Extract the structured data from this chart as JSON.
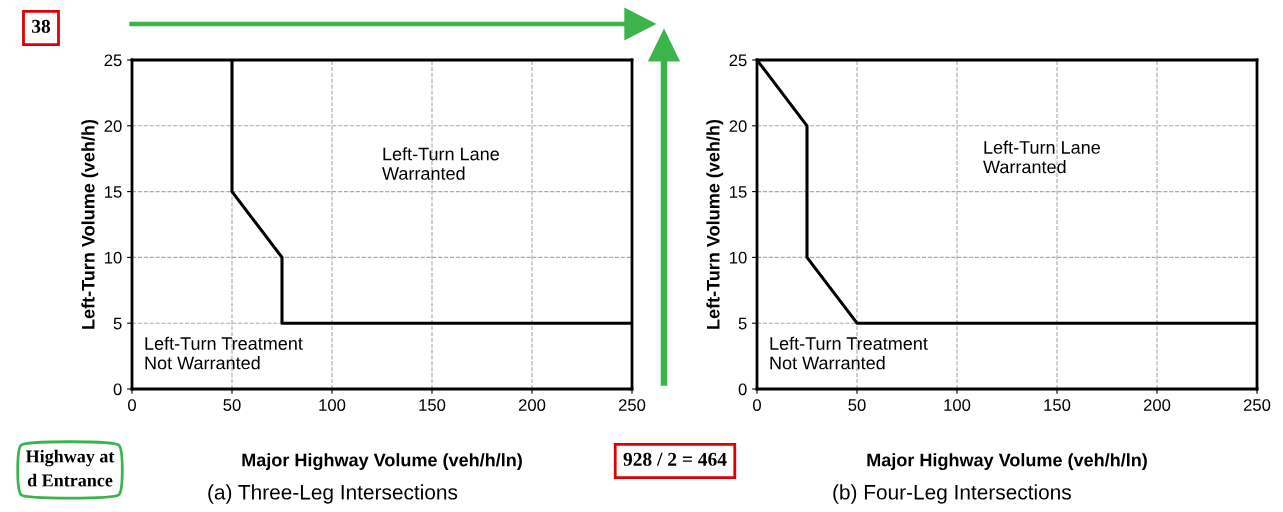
{
  "chart_data": [
    {
      "type": "line",
      "title": "(a) Three-Leg Intersections",
      "xlabel": "Major Highway Volume (veh/h/ln)",
      "ylabel": "Left-Turn Volume (veh/h)",
      "series": [
        {
          "color": "#000000",
          "x": [
            50,
            50,
            75,
            75,
            250
          ],
          "values": [
            25,
            15,
            10,
            5,
            5
          ]
        }
      ],
      "xlim": [
        0,
        250
      ],
      "ylim": [
        0,
        25
      ],
      "xticks": [
        0,
        50,
        100,
        150,
        200,
        250
      ],
      "yticks": [
        0,
        5,
        10,
        15,
        20,
        25
      ],
      "grid": true,
      "marker": "none",
      "line_style": "solid",
      "annotations": [
        "Left-Turn Lane\nWarranted",
        "Left-Turn Treatment\nNot Warranted",
        "38",
        "Highway at\nd Entrance"
      ]
    },
    {
      "type": "line",
      "title": "(b) Four-Leg Intersections",
      "xlabel": "Major Highway Volume (veh/h/ln)",
      "ylabel": "Left-Turn Volume (veh/h)",
      "series": [
        {
          "color": "#000000",
          "x": [
            0,
            25,
            25,
            50,
            250
          ],
          "values": [
            25,
            20,
            10,
            5,
            5
          ]
        }
      ],
      "xlim": [
        0,
        250
      ],
      "ylim": [
        0,
        25
      ],
      "xticks": [
        0,
        50,
        100,
        150,
        200,
        250
      ],
      "yticks": [
        0,
        5,
        10,
        15,
        20,
        25
      ],
      "grid": true,
      "marker": "none",
      "line_style": "solid",
      "annotations": [
        "Left-Turn Lane\nWarranted",
        "Left-Turn Treatment\nNot Warranted",
        "928 / 2 = 464"
      ]
    }
  ]
}
